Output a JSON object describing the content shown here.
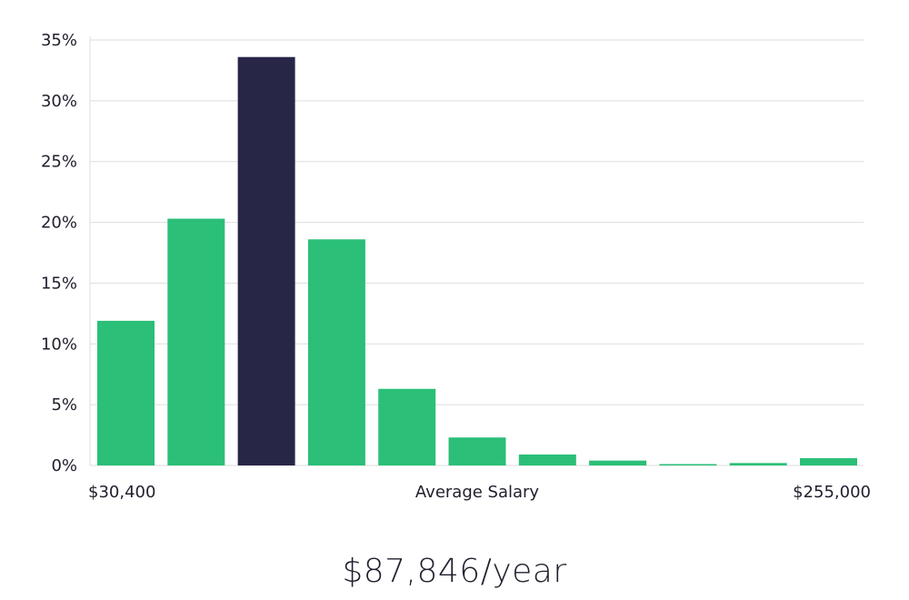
{
  "chart_data": {
    "type": "bar",
    "categories": [
      "1",
      "2",
      "3",
      "4",
      "5",
      "6",
      "7",
      "8",
      "9",
      "10",
      "11"
    ],
    "values": [
      11.9,
      20.3,
      33.6,
      18.6,
      6.3,
      2.3,
      0.9,
      0.4,
      0.1,
      0.2,
      0.6
    ],
    "highlight_index": 2,
    "ylim": [
      0,
      35
    ],
    "y_ticks": [
      0,
      5,
      10,
      15,
      20,
      25,
      30,
      35
    ],
    "y_tick_format": "%",
    "x_start_label": "$30,400",
    "xlabel": "Average Salary",
    "x_end_label": "$255,000",
    "grid": true,
    "colors": {
      "bar": "#2bbf78",
      "highlight": "#282647",
      "grid": "#dddddd",
      "text": "#1f1f2e"
    }
  },
  "salary_caption": "$87,846/year"
}
